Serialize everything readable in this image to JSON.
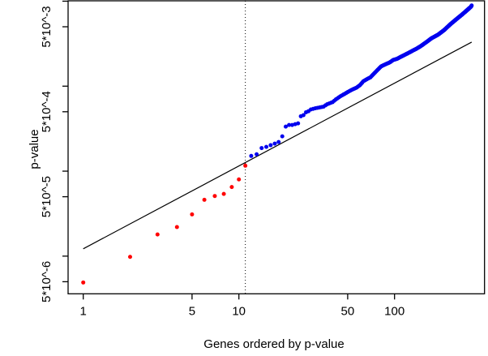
{
  "chart_data": {
    "type": "scatter",
    "title": "",
    "xlabel": "Genes ordered by p-value",
    "ylabel": "p-value",
    "x_scale": "log",
    "y_scale": "log",
    "xlim": [
      0.8,
      382
    ],
    "ylim": [
      3.6e-06,
      0.0103
    ],
    "grid": false,
    "legend": "none",
    "x_ticks": [
      {
        "value": 1,
        "label": "1"
      },
      {
        "value": 5,
        "label": "5"
      },
      {
        "value": 10,
        "label": "10"
      },
      {
        "value": 50,
        "label": "50"
      },
      {
        "value": 100,
        "label": "100"
      }
    ],
    "y_ticks_labeled": [
      {
        "value": 0.005,
        "label": "5*10^-3"
      },
      {
        "value": 0.0005,
        "label": "5*10^-4"
      },
      {
        "value": 5e-05,
        "label": "5*10^-5"
      },
      {
        "value": 5e-06,
        "label": "5*10^-6"
      }
    ],
    "y_ticks_unlabeled": [
      0.01,
      0.001,
      0.0001,
      1e-05
    ],
    "series": [
      {
        "name": "significant-genes",
        "color": "#ff0000",
        "marker": "dot",
        "count": 11,
        "points": [
          [
            1,
            4.9e-06
          ],
          [
            2,
            9.8e-06
          ],
          [
            3,
            1.8e-05
          ],
          [
            4,
            2.2e-05
          ],
          [
            5,
            3.1e-05
          ],
          [
            6,
            4.6e-05
          ],
          [
            7,
            5.1e-05
          ],
          [
            8,
            5.4e-05
          ],
          [
            9,
            6.5e-05
          ],
          [
            10,
            8e-05
          ],
          [
            11,
            0.000116
          ]
        ]
      },
      {
        "name": "non-significant-genes",
        "color": "#0000ee",
        "marker": "dot",
        "index_range": [
          12,
          313
        ],
        "count": 302,
        "control_points": [
          [
            12,
            0.000151
          ],
          [
            13,
            0.000158
          ],
          [
            14,
            0.000187
          ],
          [
            15,
            0.000193
          ],
          [
            16,
            0.000202
          ],
          [
            17,
            0.000211
          ],
          [
            18,
            0.00022
          ],
          [
            19,
            0.000257
          ],
          [
            20,
            0.000334
          ],
          [
            21,
            0.000349
          ],
          [
            22,
            0.000349
          ],
          [
            23,
            0.000357
          ],
          [
            24,
            0.000365
          ],
          [
            25,
            0.000442
          ],
          [
            26,
            0.000456
          ],
          [
            27,
            0.000493
          ],
          [
            28,
            0.000508
          ],
          [
            29,
            0.000532
          ],
          [
            31,
            0.00055
          ],
          [
            33,
            0.000562
          ],
          [
            35,
            0.000575
          ],
          [
            37,
            0.000614
          ],
          [
            40,
            0.000649
          ],
          [
            42,
            0.000699
          ],
          [
            45,
            0.000762
          ],
          [
            48,
            0.000815
          ],
          [
            51,
            0.00087
          ],
          [
            54,
            0.000919
          ],
          [
            57,
            0.00096
          ],
          [
            60,
            0.00103
          ],
          [
            63,
            0.00114
          ],
          [
            66,
            0.0012
          ],
          [
            70,
            0.00127
          ],
          [
            75,
            0.00145
          ],
          [
            82,
            0.00171
          ],
          [
            87,
            0.0018
          ],
          [
            93,
            0.0019
          ],
          [
            98,
            0.00203
          ],
          [
            104,
            0.0021
          ],
          [
            110,
            0.00222
          ],
          [
            117,
            0.00235
          ],
          [
            124,
            0.00248
          ],
          [
            131,
            0.00262
          ],
          [
            139,
            0.00277
          ],
          [
            147,
            0.00295
          ],
          [
            160,
            0.00329
          ],
          [
            172,
            0.00364
          ],
          [
            191,
            0.00405
          ],
          [
            208,
            0.00456
          ],
          [
            229,
            0.00537
          ],
          [
            249,
            0.00611
          ],
          [
            268,
            0.00682
          ],
          [
            285,
            0.00751
          ],
          [
            299,
            0.00812
          ],
          [
            310,
            0.00861
          ],
          [
            313,
            0.00889
          ]
        ]
      }
    ],
    "reference_line": {
      "name": "diagonal-reference-line",
      "color": "#000000",
      "style": "solid",
      "from": [
        1,
        1.22e-05
      ],
      "to": [
        313,
        0.0033
      ]
    },
    "cutoff_line": {
      "name": "significance-cutoff-line",
      "color": "#000000",
      "style": "dotted",
      "x": 11.0
    }
  }
}
